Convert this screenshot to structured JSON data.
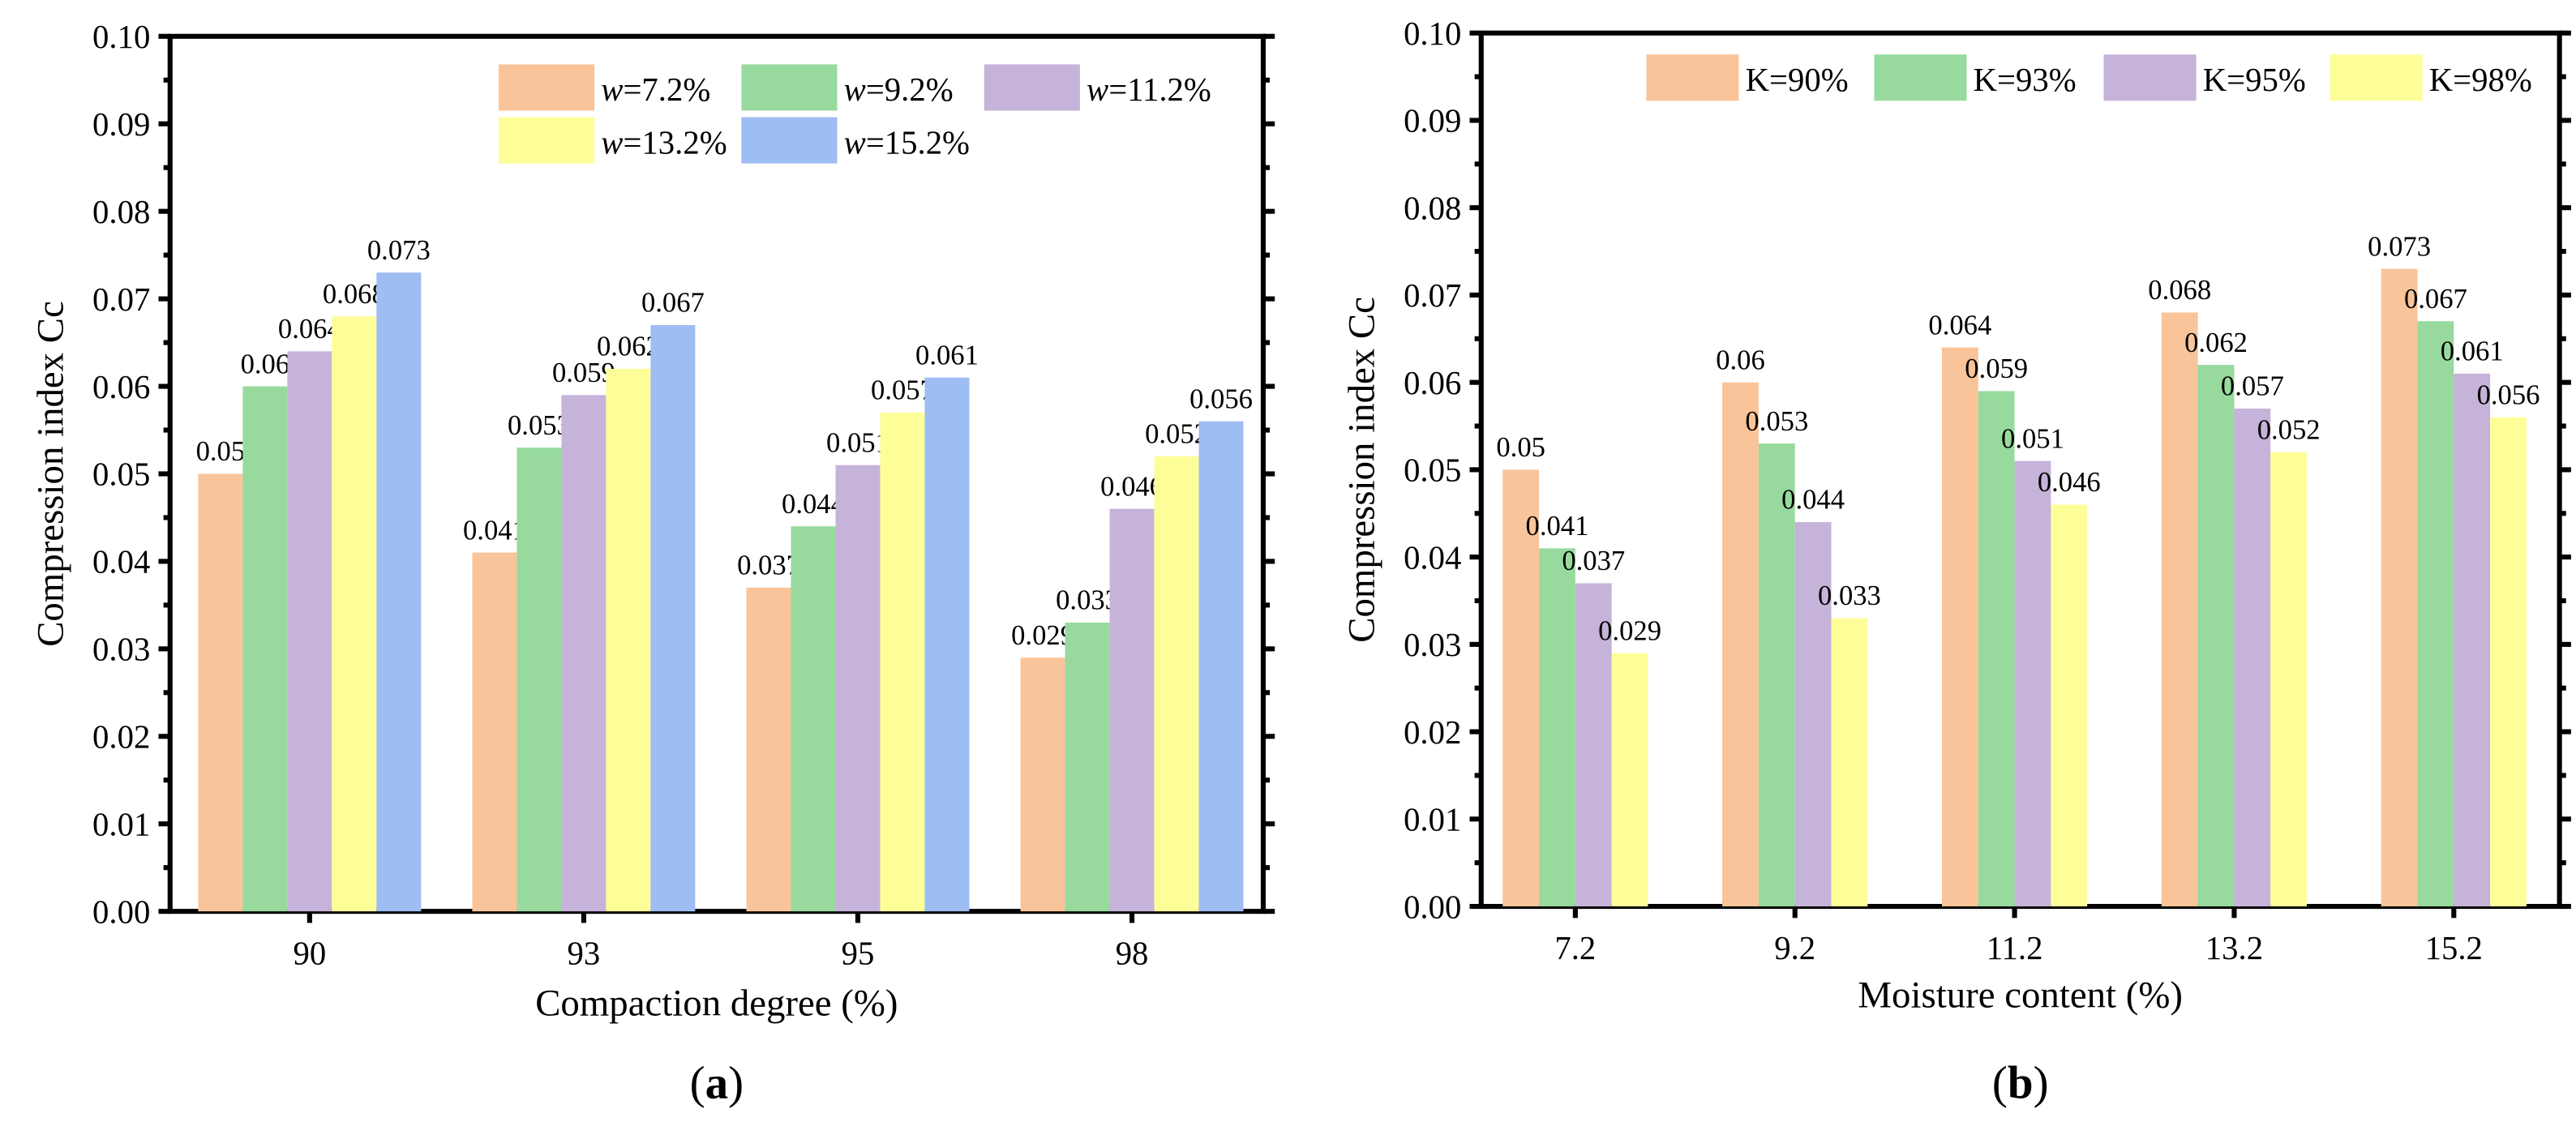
{
  "chart_data": [
    {
      "type": "bar",
      "panel_label": "(a)",
      "xlabel": "Compaction degree (%)",
      "ylabel": "Compression index Cc",
      "ylim": [
        0,
        0.1
      ],
      "yticks": [
        "0.00",
        "0.01",
        "0.02",
        "0.03",
        "0.04",
        "0.05",
        "0.06",
        "0.07",
        "0.08",
        "0.09",
        "0.10"
      ],
      "categories": [
        "90",
        "93",
        "95",
        "98"
      ],
      "legend_position": "top-right",
      "series": [
        {
          "name_prefix": "w",
          "name_suffix": "=7.2%",
          "color": "#F9C49A",
          "values": [
            0.05,
            0.041,
            0.037,
            0.029
          ],
          "labels": [
            "0.05",
            "0.041",
            "0.037",
            "0.029"
          ]
        },
        {
          "name_prefix": "w",
          "name_suffix": "=9.2%",
          "color": "#98DA9E",
          "values": [
            0.06,
            0.053,
            0.044,
            0.033
          ],
          "labels": [
            "0.06",
            "0.053",
            "0.044",
            "0.033"
          ]
        },
        {
          "name_prefix": "w",
          "name_suffix": "=11.2%",
          "color": "#C5B3D9",
          "values": [
            0.064,
            0.059,
            0.051,
            0.046
          ],
          "labels": [
            "0.064",
            "0.059",
            "0.051",
            "0.046"
          ]
        },
        {
          "name_prefix": "w",
          "name_suffix": "=13.2%",
          "color": "#FEFE99",
          "values": [
            0.068,
            0.062,
            0.057,
            0.052
          ],
          "labels": [
            "0.068",
            "0.062",
            "0.057",
            "0.052"
          ]
        },
        {
          "name_prefix": "w",
          "name_suffix": "=15.2%",
          "color": "#9DBDF3",
          "values": [
            0.073,
            0.067,
            0.061,
            0.056
          ],
          "labels": [
            "0.073",
            "0.067",
            "0.061",
            "0.056"
          ]
        }
      ]
    },
    {
      "type": "bar",
      "panel_label": "(b)",
      "xlabel": "Moisture content (%)",
      "ylabel": "Compression index Cc",
      "ylim": [
        0,
        0.1
      ],
      "yticks": [
        "0.00",
        "0.01",
        "0.02",
        "0.03",
        "0.04",
        "0.05",
        "0.06",
        "0.07",
        "0.08",
        "0.09",
        "0.10"
      ],
      "categories": [
        "7.2",
        "9.2",
        "11.2",
        "13.2",
        "15.2"
      ],
      "legend_position": "top",
      "series": [
        {
          "name_prefix": "",
          "name_suffix": "K=90%",
          "color": "#F9C49A",
          "values": [
            0.05,
            0.06,
            0.064,
            0.068,
            0.073
          ],
          "labels": [
            "0.05",
            "0.06",
            "0.064",
            "0.068",
            "0.073"
          ]
        },
        {
          "name_prefix": "",
          "name_suffix": "K=93%",
          "color": "#98DA9E",
          "values": [
            0.041,
            0.053,
            0.059,
            0.062,
            0.067
          ],
          "labels": [
            "0.041",
            "0.053",
            "0.059",
            "0.062",
            "0.067"
          ]
        },
        {
          "name_prefix": "",
          "name_suffix": "K=95%",
          "color": "#C5B3D9",
          "values": [
            0.037,
            0.044,
            0.051,
            0.057,
            0.061
          ],
          "labels": [
            "0.037",
            "0.044",
            "0.051",
            "0.057",
            "0.061"
          ]
        },
        {
          "name_prefix": "",
          "name_suffix": "K=98%",
          "color": "#FEFE99",
          "values": [
            0.029,
            0.033,
            0.046,
            0.052,
            0.056
          ],
          "labels": [
            "0.029",
            "0.033",
            "0.046",
            "0.052",
            "0.056"
          ]
        }
      ]
    }
  ]
}
